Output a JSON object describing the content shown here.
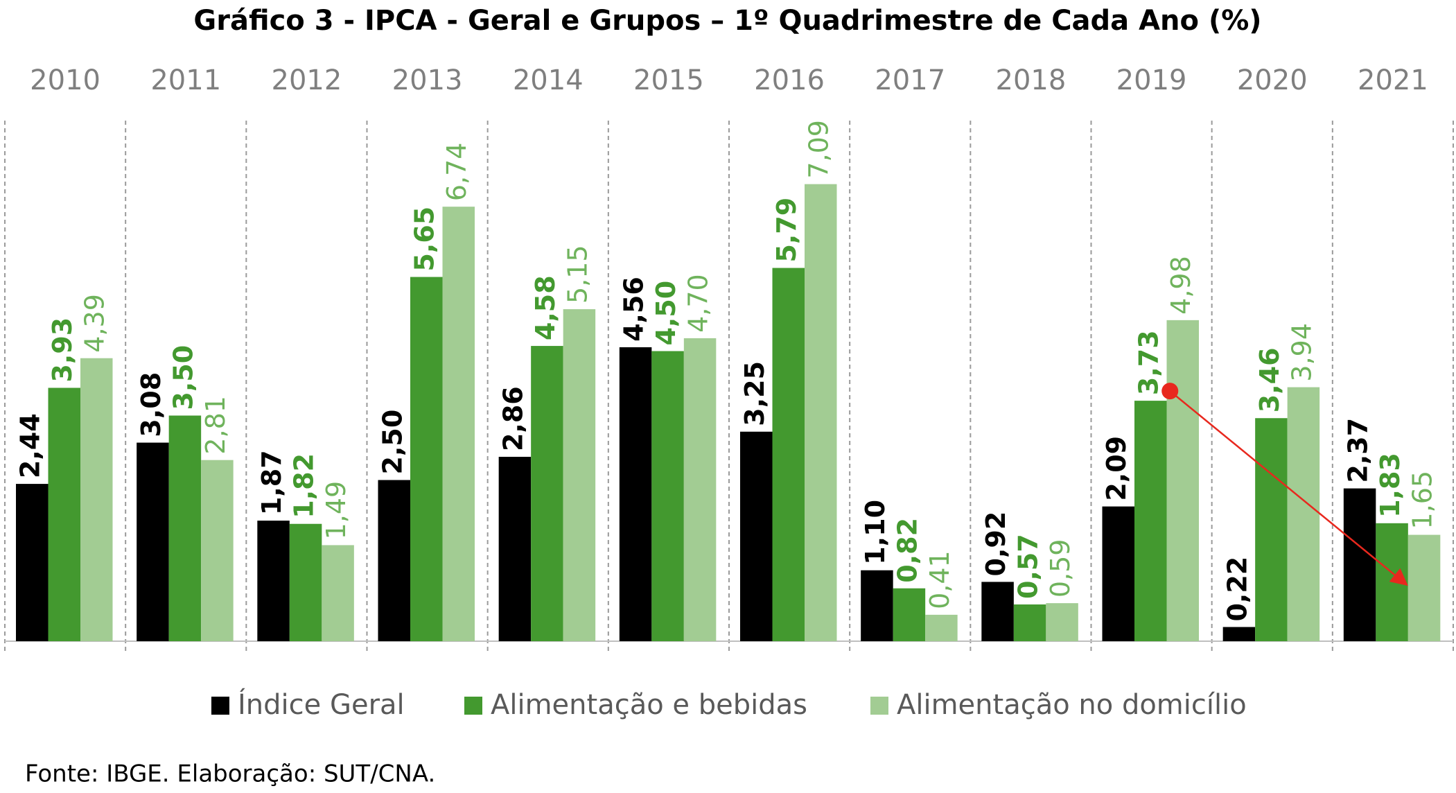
{
  "chart_data": {
    "type": "bar",
    "title": "Gráfico 3 - IPCA - Geral e Grupos – 1º Quadrimestre de Cada Ano (%)",
    "categories": [
      "2010",
      "2011",
      "2012",
      "2013",
      "2014",
      "2015",
      "2016",
      "2017",
      "2018",
      "2019",
      "2020",
      "2021"
    ],
    "series": [
      {
        "name": "Índice Geral",
        "color": "#000000",
        "values": [
          2.44,
          3.08,
          1.87,
          2.5,
          2.86,
          4.56,
          3.25,
          1.1,
          0.92,
          2.09,
          0.22,
          2.37
        ],
        "value_labels": [
          "2,44",
          "3,08",
          "1,87",
          "2,50",
          "2,86",
          "4,56",
          "3,25",
          "1,10",
          "0,92",
          "2,09",
          "0,22",
          "2,37"
        ]
      },
      {
        "name": "Alimentação e bebidas",
        "color": "#43992f",
        "values": [
          3.93,
          3.5,
          1.82,
          5.65,
          4.58,
          4.5,
          5.79,
          0.82,
          0.57,
          3.73,
          3.46,
          1.83
        ],
        "value_labels": [
          "3,93",
          "3,50",
          "1,82",
          "5,65",
          "4,58",
          "4,50",
          "5,79",
          "0,82",
          "0,57",
          "3,73",
          "3,46",
          "1,83"
        ]
      },
      {
        "name": "Alimentação no domicílio",
        "color": "#a2cc93",
        "values": [
          4.39,
          2.81,
          1.49,
          6.74,
          5.15,
          4.7,
          7.09,
          0.41,
          0.59,
          4.98,
          3.94,
          1.65
        ],
        "value_labels": [
          "4,39",
          "2,81",
          "1,49",
          "6,74",
          "5,15",
          "4,70",
          "7,09",
          "0,41",
          "0,59",
          "4,98",
          "3,94",
          "1,65"
        ]
      }
    ],
    "ylim": [
      0,
      8
    ],
    "source": "Fonte: IBGE. Elaboração: SUT/CNA."
  }
}
